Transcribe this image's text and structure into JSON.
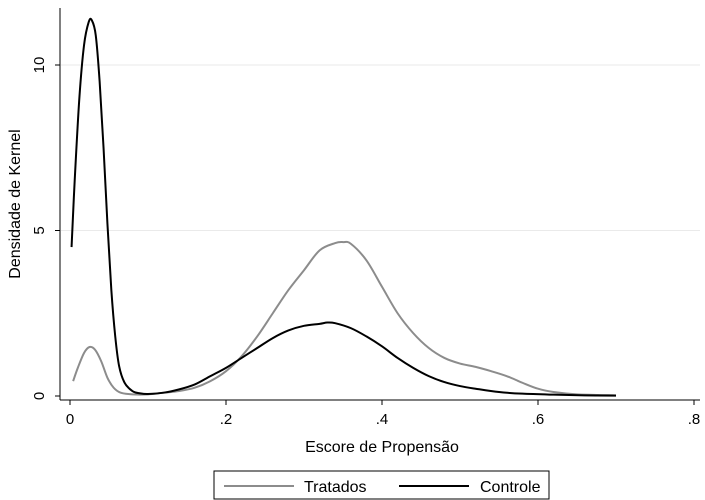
{
  "chart_data": {
    "type": "line",
    "title": "",
    "xlabel": "Escore de Propensão",
    "ylabel": "Densidade de Kernel",
    "xlim": [
      0,
      0.8
    ],
    "ylim": [
      0,
      12
    ],
    "x_ticks": [
      0,
      0.2,
      0.4,
      0.6,
      0.8
    ],
    "x_tick_labels": [
      "0",
      ".2",
      ".4",
      ".6",
      ".8"
    ],
    "y_ticks": [
      0,
      5,
      10
    ],
    "y_tick_labels": [
      "0",
      "5",
      "10"
    ],
    "grid": "horizontal",
    "legend_position": "bottom",
    "series": [
      {
        "name": "Tratados",
        "color": "#8c8c8c",
        "points": [
          [
            0.004,
            0.45
          ],
          [
            0.01,
            0.85
          ],
          [
            0.018,
            1.3
          ],
          [
            0.025,
            1.48
          ],
          [
            0.032,
            1.4
          ],
          [
            0.04,
            1.05
          ],
          [
            0.048,
            0.55
          ],
          [
            0.056,
            0.25
          ],
          [
            0.065,
            0.1
          ],
          [
            0.08,
            0.05
          ],
          [
            0.1,
            0.05
          ],
          [
            0.12,
            0.1
          ],
          [
            0.14,
            0.15
          ],
          [
            0.16,
            0.25
          ],
          [
            0.18,
            0.45
          ],
          [
            0.2,
            0.75
          ],
          [
            0.22,
            1.2
          ],
          [
            0.24,
            1.8
          ],
          [
            0.26,
            2.5
          ],
          [
            0.28,
            3.2
          ],
          [
            0.3,
            3.8
          ],
          [
            0.32,
            4.4
          ],
          [
            0.34,
            4.62
          ],
          [
            0.35,
            4.65
          ],
          [
            0.36,
            4.6
          ],
          [
            0.38,
            4.1
          ],
          [
            0.4,
            3.3
          ],
          [
            0.42,
            2.5
          ],
          [
            0.44,
            1.9
          ],
          [
            0.46,
            1.45
          ],
          [
            0.48,
            1.15
          ],
          [
            0.5,
            0.98
          ],
          [
            0.52,
            0.88
          ],
          [
            0.54,
            0.75
          ],
          [
            0.56,
            0.6
          ],
          [
            0.58,
            0.4
          ],
          [
            0.6,
            0.22
          ],
          [
            0.62,
            0.12
          ],
          [
            0.65,
            0.05
          ],
          [
            0.7,
            0.02
          ]
        ]
      },
      {
        "name": "Controle",
        "color": "#000000",
        "points": [
          [
            0.002,
            4.5
          ],
          [
            0.006,
            6.5
          ],
          [
            0.012,
            9.0
          ],
          [
            0.018,
            10.6
          ],
          [
            0.024,
            11.3
          ],
          [
            0.028,
            11.35
          ],
          [
            0.033,
            10.9
          ],
          [
            0.038,
            9.5
          ],
          [
            0.043,
            7.5
          ],
          [
            0.048,
            5.2
          ],
          [
            0.053,
            3.2
          ],
          [
            0.058,
            1.8
          ],
          [
            0.063,
            0.9
          ],
          [
            0.07,
            0.4
          ],
          [
            0.08,
            0.15
          ],
          [
            0.09,
            0.08
          ],
          [
            0.1,
            0.06
          ],
          [
            0.12,
            0.1
          ],
          [
            0.14,
            0.2
          ],
          [
            0.16,
            0.35
          ],
          [
            0.18,
            0.6
          ],
          [
            0.2,
            0.85
          ],
          [
            0.22,
            1.15
          ],
          [
            0.24,
            1.45
          ],
          [
            0.26,
            1.75
          ],
          [
            0.28,
            1.98
          ],
          [
            0.3,
            2.12
          ],
          [
            0.32,
            2.18
          ],
          [
            0.33,
            2.22
          ],
          [
            0.34,
            2.2
          ],
          [
            0.36,
            2.05
          ],
          [
            0.38,
            1.8
          ],
          [
            0.4,
            1.5
          ],
          [
            0.42,
            1.15
          ],
          [
            0.44,
            0.85
          ],
          [
            0.46,
            0.6
          ],
          [
            0.48,
            0.42
          ],
          [
            0.5,
            0.3
          ],
          [
            0.52,
            0.22
          ],
          [
            0.55,
            0.12
          ],
          [
            0.58,
            0.07
          ],
          [
            0.62,
            0.04
          ],
          [
            0.66,
            0.02
          ],
          [
            0.7,
            0.01
          ]
        ]
      }
    ]
  }
}
